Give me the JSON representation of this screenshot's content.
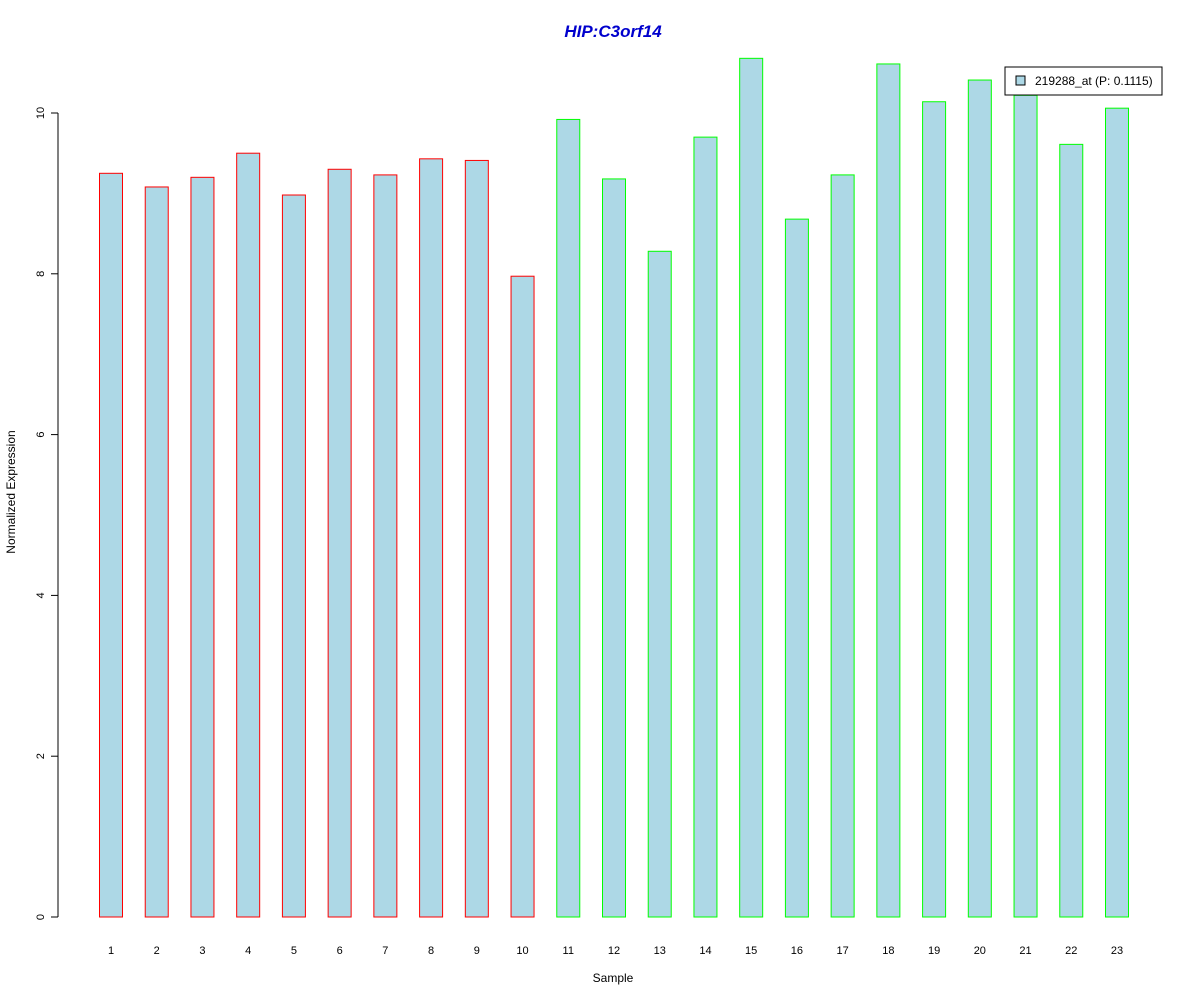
{
  "chart_data": {
    "type": "bar",
    "title": "HIP:C3orf14",
    "xlabel": "Sample",
    "ylabel": "Normalized Expression",
    "categories": [
      "1",
      "2",
      "3",
      "4",
      "5",
      "6",
      "7",
      "8",
      "9",
      "10",
      "11",
      "12",
      "13",
      "14",
      "15",
      "16",
      "17",
      "18",
      "19",
      "20",
      "21",
      "22",
      "23"
    ],
    "values": [
      9.25,
      9.08,
      9.2,
      9.5,
      8.98,
      9.3,
      9.23,
      9.43,
      9.41,
      7.97,
      9.92,
      9.18,
      8.28,
      9.7,
      10.68,
      8.68,
      9.23,
      10.61,
      10.14,
      10.41,
      10.22,
      9.61,
      10.06
    ],
    "groups": [
      "red",
      "red",
      "red",
      "red",
      "red",
      "red",
      "red",
      "red",
      "red",
      "red",
      "green",
      "green",
      "green",
      "green",
      "green",
      "green",
      "green",
      "green",
      "green",
      "green",
      "green",
      "green",
      "green"
    ],
    "y_ticks": [
      0,
      2,
      4,
      6,
      8,
      10
    ],
    "ylim": [
      0,
      10.68
    ],
    "legend": {
      "label": "219288_at (P: 0.1115)",
      "placement": "top-right"
    },
    "colors": {
      "bar_fill": "#add8e6",
      "group_red": "#ff0000",
      "group_green": "#00ff00",
      "title": "#0000cd"
    },
    "grid": false
  }
}
